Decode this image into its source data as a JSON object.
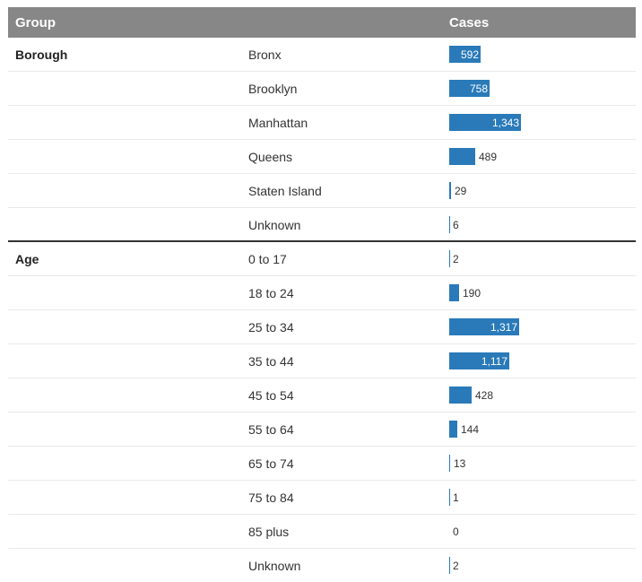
{
  "header": {
    "group": "Group",
    "cases": "Cases"
  },
  "colors": {
    "bar": "#2a7ab9",
    "header_bg": "#878787"
  },
  "chart_data": {
    "type": "bar",
    "title": "",
    "xlabel": "",
    "ylabel": "Cases",
    "xlim": [
      0,
      1343
    ],
    "sections": [
      {
        "name": "Borough",
        "categories": [
          "Bronx",
          "Brooklyn",
          "Manhattan",
          "Queens",
          "Staten Island",
          "Unknown"
        ],
        "values": [
          592,
          758,
          1343,
          489,
          29,
          6
        ],
        "labels": [
          "592",
          "758",
          "1,343",
          "489",
          "29",
          "6"
        ]
      },
      {
        "name": "Age",
        "categories": [
          "0 to 17",
          "18 to 24",
          "25 to 34",
          "35 to 44",
          "45 to 54",
          "55 to 64",
          "65 to 74",
          "75 to 84",
          "85 plus",
          "Unknown"
        ],
        "values": [
          2,
          190,
          1317,
          1117,
          428,
          144,
          13,
          1,
          0,
          2
        ],
        "labels": [
          "2",
          "190",
          "1,317",
          "1,117",
          "428",
          "144",
          "13",
          "1",
          "0",
          "2"
        ]
      }
    ]
  }
}
